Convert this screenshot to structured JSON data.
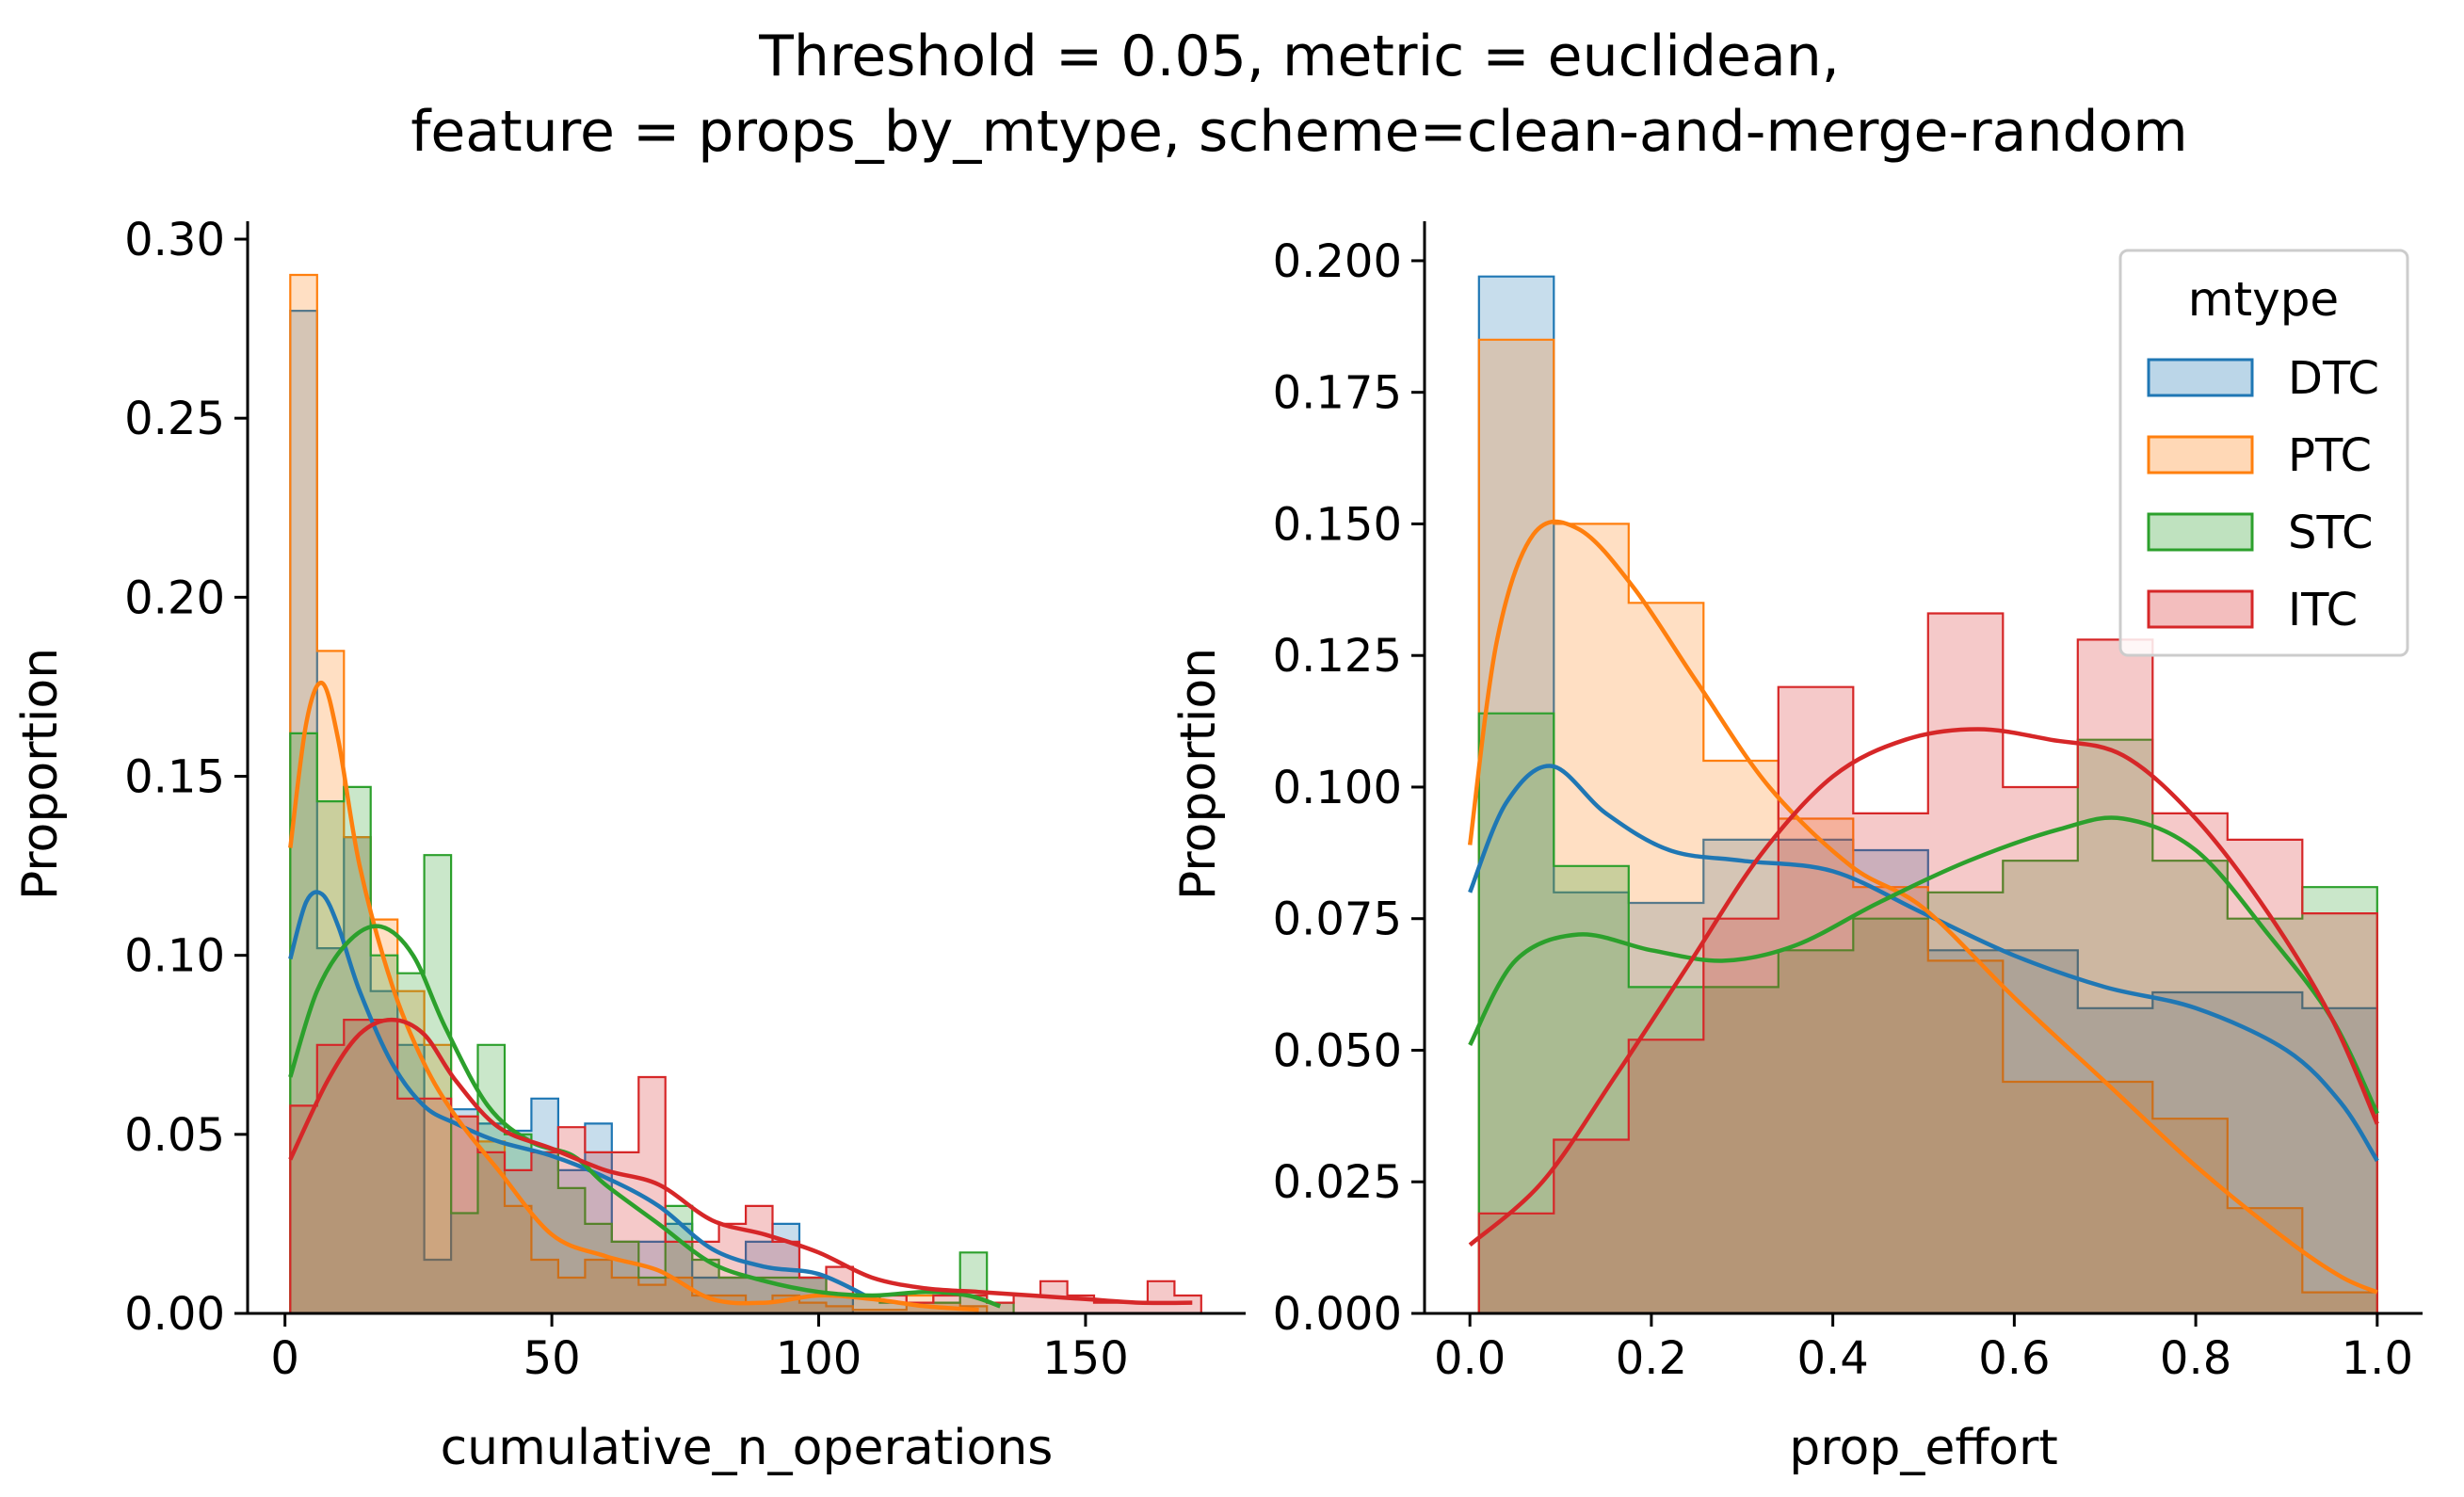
{
  "title": {
    "line1": "Threshold = 0.05, metric = euclidean,",
    "line2": "feature = props_by_mtype, scheme=clean-and-merge-random"
  },
  "colors": {
    "DTC": "#1f77b4",
    "PTC": "#ff7f0e",
    "STC": "#2ca02c",
    "ITC": "#d62728"
  },
  "legend": {
    "title": "mtype",
    "items": [
      "DTC",
      "PTC",
      "STC",
      "ITC"
    ],
    "placement": "top-right of right panel"
  },
  "chart_data": [
    {
      "type": "histogram-step-with-kde",
      "xlabel": "cumulative_n_operations",
      "ylabel": "Proportion",
      "xlim": [
        -7,
        180
      ],
      "ylim": [
        0,
        0.305
      ],
      "xticks": [
        "0",
        "50",
        "100",
        "150"
      ],
      "xtick_values": [
        0,
        50,
        100,
        150
      ],
      "yticks": [
        "0.00",
        "0.05",
        "0.10",
        "0.15",
        "0.20",
        "0.25",
        "0.30"
      ],
      "ytick_values": [
        0,
        0.05,
        0.1,
        0.15,
        0.2,
        0.25,
        0.3
      ],
      "bin_edges": [
        1,
        6.02,
        11.04,
        16.06,
        21.08,
        26.1,
        31.12,
        36.14,
        41.16,
        46.18,
        51.2,
        56.22,
        61.24,
        66.26,
        71.28,
        76.3,
        81.32,
        86.34,
        91.36,
        96.38,
        101.4,
        106.42,
        111.44,
        116.46,
        121.48,
        126.5,
        131.52,
        136.54,
        141.56,
        146.58,
        151.6,
        156.62,
        161.64,
        166.66,
        171.68
      ],
      "series": [
        {
          "name": "DTC",
          "values": [
            0.28,
            0.102,
            0.133,
            0.09,
            0.075,
            0.015,
            0.057,
            0.053,
            0.051,
            0.06,
            0.04,
            0.053,
            0.02,
            0.02,
            0.025,
            0.01,
            0.01,
            0.02,
            0.025,
            0.01,
            0.005,
            0.0,
            0,
            0,
            0,
            0,
            0,
            0,
            0,
            0,
            0,
            0,
            0,
            0
          ],
          "kde_x": [
            1,
            4,
            7,
            10,
            14,
            20,
            26,
            32,
            40,
            50,
            60,
            70,
            80,
            90,
            100,
            110
          ],
          "kde_y": [
            0.099,
            0.115,
            0.117,
            0.108,
            0.09,
            0.07,
            0.058,
            0.053,
            0.048,
            0.044,
            0.038,
            0.03,
            0.018,
            0.013,
            0.011,
            0.004
          ]
        },
        {
          "name": "PTC",
          "values": [
            0.29,
            0.185,
            0.133,
            0.11,
            0.09,
            0.075,
            0.055,
            0.048,
            0.03,
            0.015,
            0.01,
            0.015,
            0.01,
            0.008,
            0.01,
            0.005,
            0.005,
            0.003,
            0.005,
            0.003,
            0.002,
            0.001,
            0.001,
            0.005,
            0.003,
            0.002,
            0,
            0,
            0,
            0,
            0,
            0,
            0,
            0
          ],
          "kde_x": [
            1,
            4,
            7,
            10,
            14,
            20,
            26,
            32,
            40,
            50,
            60,
            70,
            80,
            90,
            100,
            110,
            120,
            130
          ],
          "kde_y": [
            0.13,
            0.165,
            0.176,
            0.16,
            0.125,
            0.092,
            0.07,
            0.055,
            0.04,
            0.022,
            0.016,
            0.012,
            0.004,
            0.003,
            0.005,
            0.004,
            0.002,
            0.001
          ]
        },
        {
          "name": "STC",
          "values": [
            0.162,
            0.143,
            0.147,
            0.1,
            0.095,
            0.128,
            0.028,
            0.075,
            0.05,
            0.045,
            0.035,
            0.025,
            0.02,
            0.01,
            0.03,
            0.015,
            0.01,
            0.01,
            0.01,
            0.01,
            0.005,
            0.005,
            0.003,
            0.003,
            0.003,
            0.017,
            0.003,
            0,
            0,
            0,
            0,
            0,
            0,
            0
          ],
          "kde_x": [
            1,
            6,
            12,
            18,
            24,
            30,
            38,
            46,
            54,
            60,
            70,
            80,
            90,
            100,
            110,
            120,
            128,
            134
          ],
          "kde_y": [
            0.066,
            0.09,
            0.104,
            0.108,
            0.1,
            0.08,
            0.058,
            0.048,
            0.044,
            0.036,
            0.025,
            0.014,
            0.009,
            0.006,
            0.005,
            0.006,
            0.005,
            0.002
          ]
        },
        {
          "name": "ITC",
          "values": [
            0.058,
            0.075,
            0.082,
            0.082,
            0.06,
            0.06,
            0.055,
            0.045,
            0.04,
            0.045,
            0.052,
            0.045,
            0.045,
            0.066,
            0.02,
            0.02,
            0.025,
            0.03,
            0.02,
            0.01,
            0.013,
            0.005,
            0.005,
            0.003,
            0.005,
            0.005,
            0.003,
            0.005,
            0.009,
            0.005,
            0.003,
            0.003,
            0.009,
            0.005
          ],
          "kde_x": [
            1,
            8,
            14,
            20,
            26,
            32,
            40,
            50,
            60,
            70,
            80,
            90,
            100,
            110,
            120,
            130,
            140,
            150,
            160,
            170
          ],
          "kde_y": [
            0.043,
            0.065,
            0.078,
            0.082,
            0.078,
            0.065,
            0.052,
            0.046,
            0.04,
            0.036,
            0.026,
            0.022,
            0.017,
            0.01,
            0.007,
            0.006,
            0.005,
            0.004,
            0.003,
            0.003
          ]
        }
      ]
    },
    {
      "type": "histogram-step-with-kde",
      "xlabel": "prop_effort",
      "ylabel": "Proportion",
      "xlim": [
        -0.05,
        1.05
      ],
      "ylim": [
        0,
        0.2075
      ],
      "xticks": [
        "0.0",
        "0.2",
        "0.4",
        "0.6",
        "0.8",
        "1.0"
      ],
      "xtick_values": [
        0,
        0.2,
        0.4,
        0.6,
        0.8,
        1.0
      ],
      "yticks": [
        "0.000",
        "0.025",
        "0.050",
        "0.075",
        "0.100",
        "0.125",
        "0.150",
        "0.175",
        "0.200"
      ],
      "ytick_values": [
        0,
        0.025,
        0.05,
        0.075,
        0.1,
        0.125,
        0.15,
        0.175,
        0.2
      ],
      "bin_edges": [
        0.01,
        0.0925,
        0.175,
        0.2575,
        0.34,
        0.4225,
        0.505,
        0.5875,
        0.67,
        0.7525,
        0.835,
        0.9175,
        1.0
      ],
      "series": [
        {
          "name": "DTC",
          "values": [
            0.197,
            0.08,
            0.078,
            0.09,
            0.09,
            0.088,
            0.069,
            0.069,
            0.058,
            0.061,
            0.061,
            0.058
          ],
          "kde_x": [
            0.0,
            0.04,
            0.09,
            0.15,
            0.22,
            0.3,
            0.4,
            0.5,
            0.6,
            0.7,
            0.8,
            0.9,
            0.96,
            1.0
          ],
          "kde_y": [
            0.08,
            0.097,
            0.104,
            0.095,
            0.088,
            0.086,
            0.084,
            0.076,
            0.068,
            0.062,
            0.058,
            0.05,
            0.04,
            0.029
          ]
        },
        {
          "name": "PTC",
          "values": [
            0.185,
            0.15,
            0.135,
            0.105,
            0.094,
            0.081,
            0.067,
            0.044,
            0.044,
            0.037,
            0.02,
            0.004
          ],
          "kde_x": [
            0.0,
            0.03,
            0.07,
            0.12,
            0.18,
            0.25,
            0.33,
            0.42,
            0.5,
            0.6,
            0.7,
            0.8,
            0.9,
            0.96,
            1.0
          ],
          "kde_y": [
            0.089,
            0.128,
            0.148,
            0.149,
            0.138,
            0.12,
            0.1,
            0.085,
            0.077,
            0.06,
            0.044,
            0.028,
            0.014,
            0.007,
            0.004
          ]
        },
        {
          "name": "STC",
          "values": [
            0.114,
            0.085,
            0.062,
            0.062,
            0.069,
            0.075,
            0.08,
            0.086,
            0.109,
            0.086,
            0.075,
            0.081
          ],
          "kde_x": [
            0.0,
            0.05,
            0.12,
            0.2,
            0.28,
            0.36,
            0.45,
            0.55,
            0.65,
            0.72,
            0.8,
            0.88,
            0.95,
            1.0
          ],
          "kde_y": [
            0.051,
            0.067,
            0.072,
            0.069,
            0.067,
            0.07,
            0.078,
            0.086,
            0.092,
            0.094,
            0.088,
            0.072,
            0.056,
            0.038
          ]
        },
        {
          "name": "ITC",
          "values": [
            0.019,
            0.033,
            0.052,
            0.075,
            0.119,
            0.095,
            0.133,
            0.1,
            0.128,
            0.095,
            0.09,
            0.076
          ],
          "kde_x": [
            0.0,
            0.08,
            0.16,
            0.24,
            0.32,
            0.4,
            0.48,
            0.56,
            0.64,
            0.72,
            0.8,
            0.88,
            0.95,
            1.0
          ],
          "kde_y": [
            0.013,
            0.025,
            0.045,
            0.066,
            0.087,
            0.102,
            0.109,
            0.111,
            0.109,
            0.106,
            0.094,
            0.076,
            0.056,
            0.036
          ]
        }
      ]
    }
  ]
}
